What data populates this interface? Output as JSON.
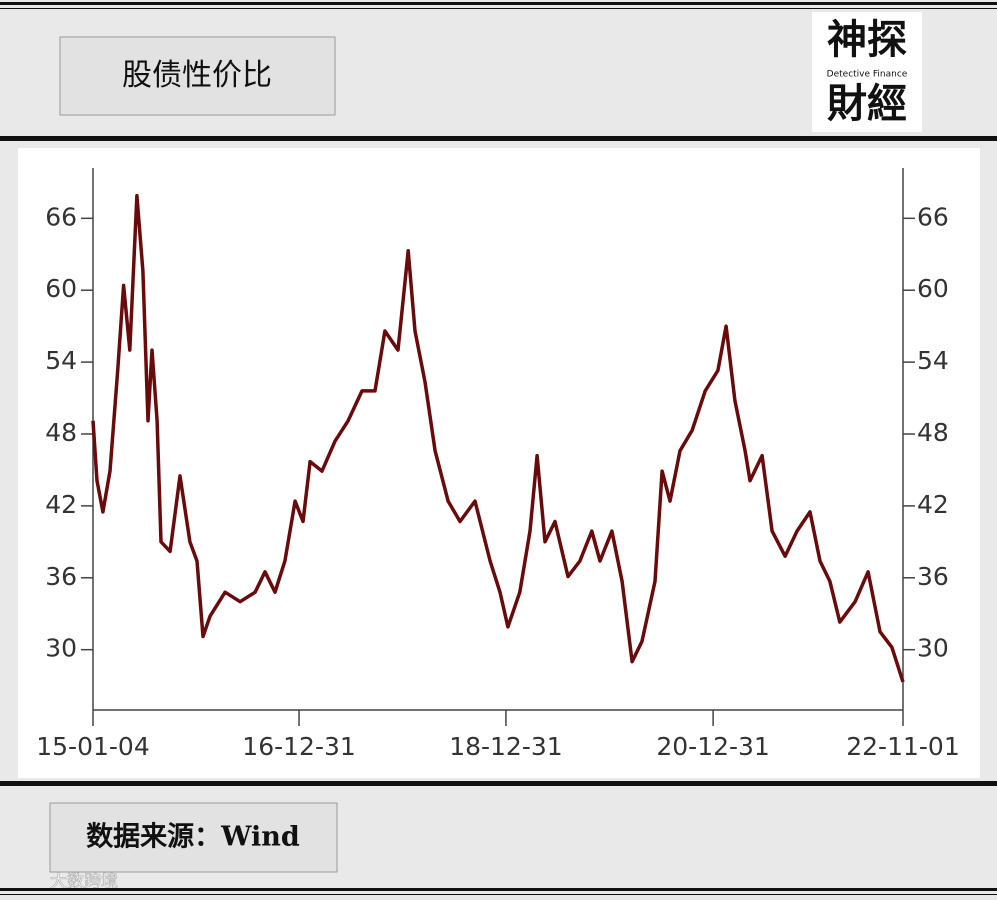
{
  "chart_data": {
    "type": "line",
    "title": "股债性价比",
    "source": "数据来源：Wind",
    "x": [
      "15-01-04",
      "15-01-18",
      "15-02-08",
      "15-03-05",
      "15-04-01",
      "15-04-22",
      "15-05-14",
      "15-06-08",
      "15-06-29",
      "15-07-17",
      "15-07-31",
      "15-08-18",
      "15-09-01",
      "15-10-03",
      "15-11-07",
      "15-12-12",
      "16-01-06",
      "16-01-27",
      "16-02-21",
      "16-04-14",
      "16-06-06",
      "16-07-29",
      "16-09-02",
      "16-10-07",
      "16-11-11",
      "16-12-17",
      "17-01-14",
      "17-02-08",
      "17-03-22",
      "17-05-07",
      "17-06-22",
      "17-08-10",
      "17-09-25",
      "17-10-30",
      "17-12-15",
      "18-01-20",
      "18-02-13",
      "18-03-20",
      "18-04-25",
      "18-06-10",
      "18-07-22",
      "18-09-13",
      "18-11-05",
      "18-12-10",
      "19-01-07",
      "19-02-18",
      "19-03-26",
      "19-04-20",
      "19-05-18",
      "19-06-22",
      "19-08-07",
      "19-09-18",
      "19-10-30",
      "19-11-28",
      "20-01-09",
      "20-02-14",
      "20-03-20",
      "20-04-24",
      "20-06-09",
      "20-07-04",
      "20-08-01",
      "20-09-05",
      "20-10-18",
      "20-12-03",
      "21-01-17",
      "21-02-15",
      "21-03-18",
      "21-04-23",
      "21-05-10",
      "21-06-22",
      "21-07-27",
      "21-09-11",
      "21-10-23",
      "21-12-08",
      "22-01-12",
      "22-02-16",
      "22-03-23",
      "22-05-16",
      "22-07-01",
      "22-08-12",
      "22-09-23",
      "22-11-01"
    ],
    "series": [
      {
        "color": "#6b0a0a",
        "values": [
          49.1,
          44.1,
          41.5,
          44.9,
          53.3,
          60.4,
          55,
          67.9,
          61.6,
          49.1,
          55,
          49.1,
          39,
          38.2,
          44.5,
          39,
          37.4,
          31.1,
          32.8,
          34.8,
          34,
          34.8,
          36.5,
          34.8,
          37.4,
          42.4,
          40.7,
          45.7,
          44.9,
          47.4,
          49.1,
          51.6,
          51.6,
          56.6,
          55,
          63.3,
          56.6,
          52.4,
          46.6,
          42.4,
          40.7,
          42.4,
          37.4,
          34.8,
          31.9,
          34.8,
          39.9,
          46.2,
          39,
          40.7,
          36.1,
          37.4,
          39.9,
          37.4,
          39.9,
          35.7,
          29,
          30.7,
          35.7,
          44.9,
          42.4,
          46.6,
          48.3,
          51.6,
          53.3,
          57,
          50.8,
          46.6,
          44.1,
          46.2,
          39.9,
          37.8,
          39.9,
          41.5,
          37.4,
          35.7,
          32.3,
          34,
          36.5,
          31.5,
          30.2,
          27.3
        ]
      }
    ],
    "xlim": [
      "15-01-04",
      "22-11-01"
    ],
    "xticks": [
      "15-01-04",
      "16-12-31",
      "18-12-31",
      "20-12-31",
      "22-11-01"
    ],
    "ylim": [
      25.8,
      70.2
    ],
    "yticks": [
      30,
      36,
      42,
      48,
      54,
      60,
      66
    ],
    "logo": {
      "top": "神探",
      "middle": "Detective Finance",
      "bottom": "財經"
    },
    "watermark": "大数跨境"
  }
}
